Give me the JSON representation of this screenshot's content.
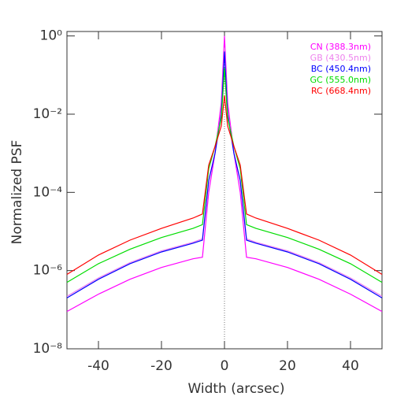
{
  "chart_data": {
    "type": "line",
    "x_label": "Width (arcsec)",
    "y_label": "Normalized PSF",
    "log_y": true,
    "xlim": [
      -50,
      50
    ],
    "xticks": [
      -40,
      -20,
      0,
      20,
      40
    ],
    "ylim": [
      1e-08,
      1.3
    ],
    "yticks": [
      {
        "value": 1e-08,
        "label": "10⁻⁸"
      },
      {
        "value": 1e-06,
        "label": "10⁻⁶"
      },
      {
        "value": 0.0001,
        "label": "10⁻⁴"
      },
      {
        "value": 0.01,
        "label": "10⁻²"
      },
      {
        "value": 1,
        "label": "10⁰"
      }
    ],
    "legend": "upper right",
    "x": [
      -50,
      -40,
      -30,
      -20,
      -10,
      -7,
      -5,
      -3,
      -1,
      0,
      1,
      3,
      5,
      7,
      10,
      20,
      30,
      40,
      50
    ],
    "series": [
      {
        "name": "CN (388.3nm)",
        "color": "#ff00ff",
        "values": [
          9e-08,
          2.5e-07,
          6e-07,
          1.2e-06,
          2e-06,
          2.2e-06,
          0.0001,
          0.001,
          0.02,
          1.0,
          0.02,
          0.001,
          0.0001,
          2.2e-06,
          2e-06,
          1.2e-06,
          6e-07,
          2.5e-07,
          9e-08
        ]
      },
      {
        "name": "GB (430.5nm)",
        "color": "#ee82ee",
        "values": [
          2.2e-07,
          6.5e-07,
          1.6e-06,
          3.2e-06,
          5.3e-06,
          6.5e-06,
          0.0002,
          0.001,
          0.012,
          0.5,
          0.012,
          0.001,
          0.0002,
          6.5e-06,
          5.3e-06,
          3.2e-06,
          1.6e-06,
          6.5e-07,
          2.2e-07
        ]
      },
      {
        "name": "BC (450.4nm)",
        "color": "#0000ff",
        "values": [
          2e-07,
          6e-07,
          1.5e-06,
          3e-06,
          5e-06,
          6e-06,
          0.0002,
          0.001,
          0.01,
          0.4,
          0.01,
          0.001,
          0.0002,
          6e-06,
          5e-06,
          3e-06,
          1.5e-06,
          6e-07,
          2e-07
        ]
      },
      {
        "name": "GC (555.0nm)",
        "color": "#00dd00",
        "values": [
          5e-07,
          1.5e-06,
          3.5e-06,
          7e-06,
          1.2e-05,
          1.5e-05,
          0.0004,
          0.0015,
          0.008,
          0.15,
          0.008,
          0.0015,
          0.0004,
          1.5e-05,
          1.2e-05,
          7e-06,
          3.5e-06,
          1.5e-06,
          5e-07
        ]
      },
      {
        "name": "RC (668.4nm)",
        "color": "#ff0000",
        "values": [
          8e-07,
          2.5e-06,
          6e-06,
          1.2e-05,
          2.2e-05,
          2.8e-05,
          0.0005,
          0.0015,
          0.005,
          0.03,
          0.005,
          0.0015,
          0.0005,
          2.8e-05,
          2.2e-05,
          1.2e-05,
          6e-06,
          2.5e-06,
          8e-07
        ]
      }
    ]
  }
}
